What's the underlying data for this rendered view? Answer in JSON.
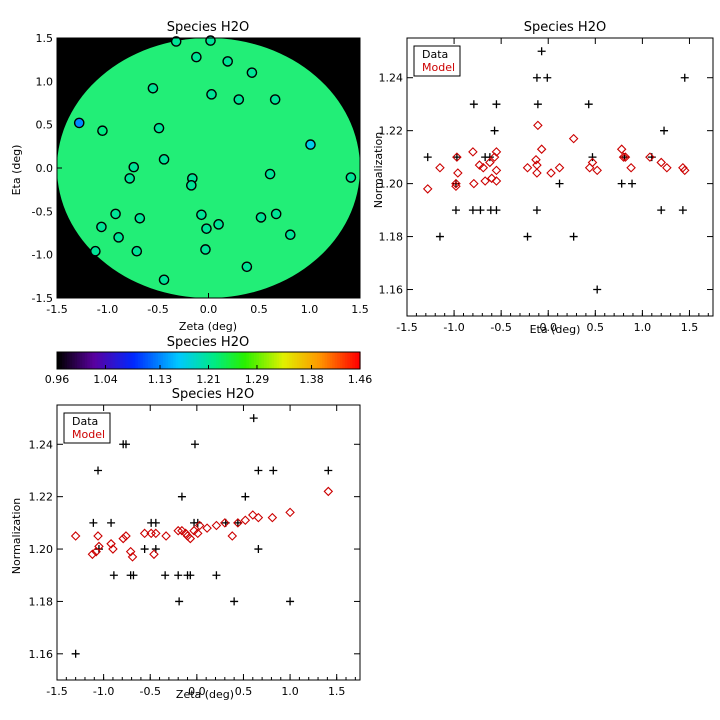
{
  "chart_data": [
    {
      "type": "scatter",
      "panel": "map",
      "title": "Species H2O",
      "xlabel": "Zeta (deg)",
      "ylabel": "Eta (deg)",
      "xlim": [
        -1.5,
        1.5
      ],
      "ylim": [
        -1.5,
        1.5
      ],
      "xticks": [
        "-1.5",
        "-1.0",
        "-0.5",
        "0.0",
        "0.5",
        "1.0",
        "1.5"
      ],
      "yticks": [
        "-1.5",
        "-1.0",
        "-0.5",
        "0.0",
        "0.5",
        "1.0",
        "1.5"
      ],
      "background": "#000000",
      "disc_color": "#22ee77",
      "grid": false,
      "points": [
        {
          "x": -0.32,
          "y": 1.46,
          "value": 1.21
        },
        {
          "x": 0.02,
          "y": 1.47,
          "value": 1.21
        },
        {
          "x": -0.12,
          "y": 1.28,
          "value": 1.21
        },
        {
          "x": 0.19,
          "y": 1.23,
          "value": 1.21
        },
        {
          "x": 0.43,
          "y": 1.1,
          "value": 1.21
        },
        {
          "x": -0.55,
          "y": 0.92,
          "value": 1.21
        },
        {
          "x": 0.03,
          "y": 0.85,
          "value": 1.21
        },
        {
          "x": 0.3,
          "y": 0.79,
          "value": 1.21
        },
        {
          "x": 0.66,
          "y": 0.79,
          "value": 1.21
        },
        {
          "x": -1.28,
          "y": 0.52,
          "value": 1.13
        },
        {
          "x": -1.05,
          "y": 0.43,
          "value": 1.22
        },
        {
          "x": -0.49,
          "y": 0.46,
          "value": 1.21
        },
        {
          "x": 1.01,
          "y": 0.27,
          "value": 1.17
        },
        {
          "x": -0.44,
          "y": 0.1,
          "value": 1.21
        },
        {
          "x": -0.74,
          "y": 0.01,
          "value": 1.21
        },
        {
          "x": -0.78,
          "y": -0.12,
          "value": 1.21
        },
        {
          "x": -0.16,
          "y": -0.12,
          "value": 1.21
        },
        {
          "x": -0.17,
          "y": -0.2,
          "value": 1.21
        },
        {
          "x": 0.61,
          "y": -0.07,
          "value": 1.21
        },
        {
          "x": 1.41,
          "y": -0.11,
          "value": 1.21
        },
        {
          "x": -0.92,
          "y": -0.53,
          "value": 1.21
        },
        {
          "x": -0.68,
          "y": -0.58,
          "value": 1.21
        },
        {
          "x": -0.07,
          "y": -0.54,
          "value": 1.21
        },
        {
          "x": 0.52,
          "y": -0.57,
          "value": 1.21
        },
        {
          "x": 0.67,
          "y": -0.53,
          "value": 1.21
        },
        {
          "x": -1.06,
          "y": -0.68,
          "value": 1.21
        },
        {
          "x": -0.02,
          "y": -0.7,
          "value": 1.21
        },
        {
          "x": 0.1,
          "y": -0.65,
          "value": 1.21
        },
        {
          "x": 0.81,
          "y": -0.77,
          "value": 1.21
        },
        {
          "x": -0.89,
          "y": -0.8,
          "value": 1.21
        },
        {
          "x": -0.71,
          "y": -0.96,
          "value": 1.21
        },
        {
          "x": -1.12,
          "y": -0.96,
          "value": 1.21
        },
        {
          "x": -0.03,
          "y": -0.94,
          "value": 1.21
        },
        {
          "x": 0.38,
          "y": -1.14,
          "value": 1.21
        },
        {
          "x": -0.44,
          "y": -1.29,
          "value": 1.21
        }
      ]
    },
    {
      "type": "colorbar",
      "title": "Species H2O",
      "ticks": [
        "0.96",
        "1.04",
        "1.13",
        "1.21",
        "1.29",
        "1.38",
        "1.46"
      ],
      "range": [
        0.96,
        1.46
      ]
    },
    {
      "type": "scatter",
      "panel": "eta",
      "title": "Species H2O",
      "xlabel": "Eta (deg)",
      "ylabel": "Normalization",
      "xlim": [
        -1.5,
        1.75
      ],
      "ylim": [
        1.15,
        1.255
      ],
      "xticks": [
        "-1.5",
        "-1.0",
        "-0.5",
        "0.0",
        "0.5",
        "1.0",
        "1.5"
      ],
      "yticks": [
        "1.16",
        "1.18",
        "1.20",
        "1.22",
        "1.24"
      ],
      "grid": false,
      "legend": {
        "position": "top-left",
        "entries": [
          {
            "label": "Data",
            "color": "#000000"
          },
          {
            "label": "Model",
            "color": "#cc0000"
          }
        ]
      },
      "series": [
        {
          "name": "Data",
          "marker": "plus",
          "color": "#000000",
          "points": [
            [
              -1.28,
              1.21
            ],
            [
              -1.15,
              1.18
            ],
            [
              -0.97,
              1.21
            ],
            [
              -0.98,
              1.19
            ],
            [
              -0.98,
              1.2
            ],
            [
              -0.79,
              1.23
            ],
            [
              -0.8,
              1.19
            ],
            [
              -0.72,
              1.19
            ],
            [
              -0.67,
              1.21
            ],
            [
              -0.62,
              1.21
            ],
            [
              -0.61,
              1.19
            ],
            [
              -0.55,
              1.23
            ],
            [
              -0.57,
              1.22
            ],
            [
              -0.55,
              1.19
            ],
            [
              -0.22,
              1.18
            ],
            [
              -0.12,
              1.24
            ],
            [
              -0.11,
              1.23
            ],
            [
              -0.07,
              1.25
            ],
            [
              -0.12,
              1.19
            ],
            [
              -0.01,
              1.24
            ],
            [
              0.12,
              1.2
            ],
            [
              0.27,
              1.18
            ],
            [
              0.43,
              1.23
            ],
            [
              0.47,
              1.21
            ],
            [
              0.52,
              1.16
            ],
            [
              0.78,
              1.2
            ],
            [
              0.81,
              1.21
            ],
            [
              0.89,
              1.2
            ],
            [
              1.1,
              1.21
            ],
            [
              1.2,
              1.19
            ],
            [
              1.23,
              1.22
            ],
            [
              1.43,
              1.19
            ],
            [
              1.45,
              1.24
            ]
          ]
        },
        {
          "name": "Model",
          "marker": "diamond",
          "color": "#cc0000",
          "points": [
            [
              -1.28,
              1.198
            ],
            [
              -1.15,
              1.206
            ],
            [
              -0.97,
              1.21
            ],
            [
              -0.96,
              1.204
            ],
            [
              -0.98,
              1.2
            ],
            [
              -0.98,
              1.199
            ],
            [
              -0.8,
              1.212
            ],
            [
              -0.79,
              1.2
            ],
            [
              -0.73,
              1.207
            ],
            [
              -0.69,
              1.206
            ],
            [
              -0.67,
              1.201
            ],
            [
              -0.62,
              1.208
            ],
            [
              -0.6,
              1.202
            ],
            [
              -0.55,
              1.212
            ],
            [
              -0.57,
              1.21
            ],
            [
              -0.55,
              1.205
            ],
            [
              -0.55,
              1.201
            ],
            [
              -0.22,
              1.206
            ],
            [
              -0.12,
              1.204
            ],
            [
              -0.13,
              1.209
            ],
            [
              -0.11,
              1.222
            ],
            [
              -0.07,
              1.213
            ],
            [
              -0.12,
              1.207
            ],
            [
              0.03,
              1.204
            ],
            [
              0.12,
              1.206
            ],
            [
              0.27,
              1.217
            ],
            [
              0.44,
              1.206
            ],
            [
              0.47,
              1.208
            ],
            [
              0.52,
              1.205
            ],
            [
              0.78,
              1.213
            ],
            [
              0.8,
              1.21
            ],
            [
              0.82,
              1.21
            ],
            [
              0.88,
              1.206
            ],
            [
              1.08,
              1.21
            ],
            [
              1.2,
              1.208
            ],
            [
              1.26,
              1.206
            ],
            [
              1.43,
              1.206
            ],
            [
              1.45,
              1.205
            ]
          ]
        }
      ]
    },
    {
      "type": "scatter",
      "panel": "zeta",
      "title": "Species H2O",
      "xlabel": "Zeta (deg)",
      "ylabel": "Normalization",
      "xlim": [
        -1.5,
        1.75
      ],
      "ylim": [
        1.15,
        1.255
      ],
      "xticks": [
        "-1.5",
        "-1.0",
        "-0.5",
        "0.0",
        "0.5",
        "1.0",
        "1.5"
      ],
      "yticks": [
        "1.16",
        "1.18",
        "1.20",
        "1.22",
        "1.24"
      ],
      "grid": false,
      "legend": {
        "position": "top-left",
        "entries": [
          {
            "label": "Data",
            "color": "#000000"
          },
          {
            "label": "Model",
            "color": "#cc0000"
          }
        ]
      },
      "series": [
        {
          "name": "Data",
          "marker": "plus",
          "color": "#000000",
          "points": [
            [
              -1.3,
              1.16
            ],
            [
              -1.11,
              1.21
            ],
            [
              -1.06,
              1.23
            ],
            [
              -1.05,
              1.2
            ],
            [
              -0.92,
              1.21
            ],
            [
              -0.89,
              1.19
            ],
            [
              -0.79,
              1.24
            ],
            [
              -0.76,
              1.24
            ],
            [
              -0.71,
              1.19
            ],
            [
              -0.68,
              1.19
            ],
            [
              -0.56,
              1.2
            ],
            [
              -0.49,
              1.21
            ],
            [
              -0.44,
              1.21
            ],
            [
              -0.44,
              1.2
            ],
            [
              -0.34,
              1.19
            ],
            [
              -0.2,
              1.19
            ],
            [
              -0.19,
              1.18
            ],
            [
              -0.16,
              1.22
            ],
            [
              -0.1,
              1.19
            ],
            [
              -0.07,
              1.19
            ],
            [
              -0.03,
              1.21
            ],
            [
              -0.02,
              1.24
            ],
            [
              0.01,
              1.21
            ],
            [
              0.21,
              1.19
            ],
            [
              0.31,
              1.21
            ],
            [
              0.4,
              1.18
            ],
            [
              0.44,
              1.21
            ],
            [
              0.52,
              1.22
            ],
            [
              0.61,
              1.25
            ],
            [
              0.66,
              1.23
            ],
            [
              0.66,
              1.2
            ],
            [
              0.82,
              1.23
            ],
            [
              1.0,
              1.18
            ],
            [
              1.41,
              1.23
            ]
          ]
        },
        {
          "name": "Model",
          "marker": "diamond",
          "color": "#cc0000",
          "points": [
            [
              -1.3,
              1.205
            ],
            [
              -1.12,
              1.198
            ],
            [
              -1.08,
              1.199
            ],
            [
              -1.06,
              1.205
            ],
            [
              -1.05,
              1.201
            ],
            [
              -0.92,
              1.202
            ],
            [
              -0.9,
              1.2
            ],
            [
              -0.79,
              1.204
            ],
            [
              -0.76,
              1.205
            ],
            [
              -0.71,
              1.199
            ],
            [
              -0.69,
              1.197
            ],
            [
              -0.56,
              1.206
            ],
            [
              -0.49,
              1.206
            ],
            [
              -0.46,
              1.198
            ],
            [
              -0.44,
              1.206
            ],
            [
              -0.33,
              1.205
            ],
            [
              -0.2,
              1.207
            ],
            [
              -0.16,
              1.207
            ],
            [
              -0.12,
              1.206
            ],
            [
              -0.1,
              1.205
            ],
            [
              -0.07,
              1.204
            ],
            [
              -0.03,
              1.207
            ],
            [
              0.01,
              1.206
            ],
            [
              0.03,
              1.209
            ],
            [
              0.11,
              1.208
            ],
            [
              0.21,
              1.209
            ],
            [
              0.3,
              1.21
            ],
            [
              0.38,
              1.205
            ],
            [
              0.44,
              1.21
            ],
            [
              0.52,
              1.211
            ],
            [
              0.6,
              1.213
            ],
            [
              0.66,
              1.212
            ],
            [
              0.81,
              1.212
            ],
            [
              1.0,
              1.214
            ],
            [
              1.41,
              1.222
            ]
          ]
        }
      ]
    }
  ]
}
